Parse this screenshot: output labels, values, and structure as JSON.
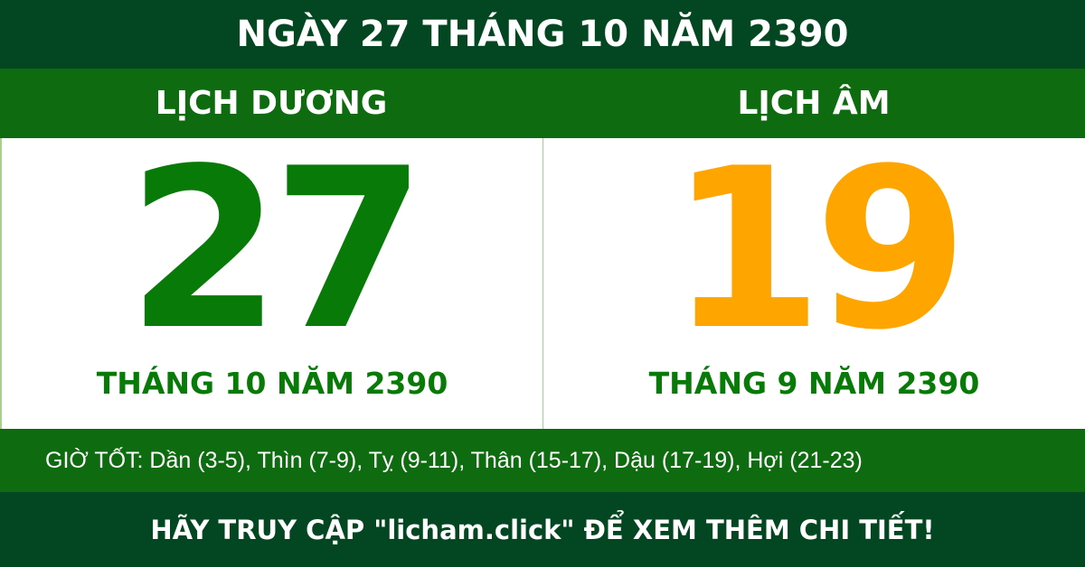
{
  "header": {
    "title": "NGÀY 27 THÁNG 10 NĂM 2390"
  },
  "solar": {
    "label": "LỊCH DƯƠNG",
    "day": "27",
    "month_year": "THÁNG 10 NĂM 2390",
    "color": "#087a08"
  },
  "lunar": {
    "label": "LỊCH ÂM",
    "day": "19",
    "month_year": "THÁNG 9 NĂM 2390",
    "color": "#ffa500"
  },
  "good_hours": "GIỜ TỐT: Dần (3-5), Thìn (7-9), Tỵ (9-11), Thân (15-17), Dậu (17-19), Hợi (21-23)",
  "footer": {
    "text": "HÃY TRUY CẬP \"licham.click\" ĐỂ XEM THÊM CHI TIẾT!"
  }
}
